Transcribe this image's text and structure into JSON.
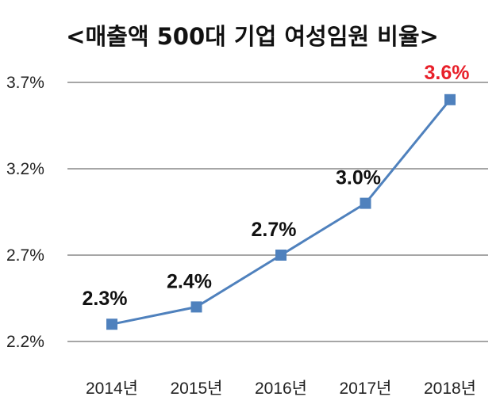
{
  "chart_data": {
    "type": "line",
    "title": "<매출액 500대 기업 여성임원 비율>",
    "xlabel": "",
    "ylabel": "",
    "categories": [
      "2014년",
      "2015년",
      "2016년",
      "2017년",
      "2018년"
    ],
    "series": [
      {
        "values": [
          2.3,
          2.4,
          2.7,
          3.0,
          3.6
        ],
        "color": "#4F81BD"
      }
    ],
    "data_labels": [
      "2.3%",
      "2.4%",
      "2.7%",
      "3.0%",
      "3.6%"
    ],
    "data_label_colors": [
      "#111111",
      "#111111",
      "#111111",
      "#111111",
      "#E8202A"
    ],
    "ylim": [
      2.2,
      3.7
    ],
    "yticks": [
      2.2,
      2.7,
      3.2,
      3.7
    ],
    "ytick_labels": [
      "2.2%",
      "2.7%",
      "3.2%",
      "3.7%"
    ],
    "grid": true,
    "marker": "square",
    "gridline_color": "#A6A6A6"
  }
}
